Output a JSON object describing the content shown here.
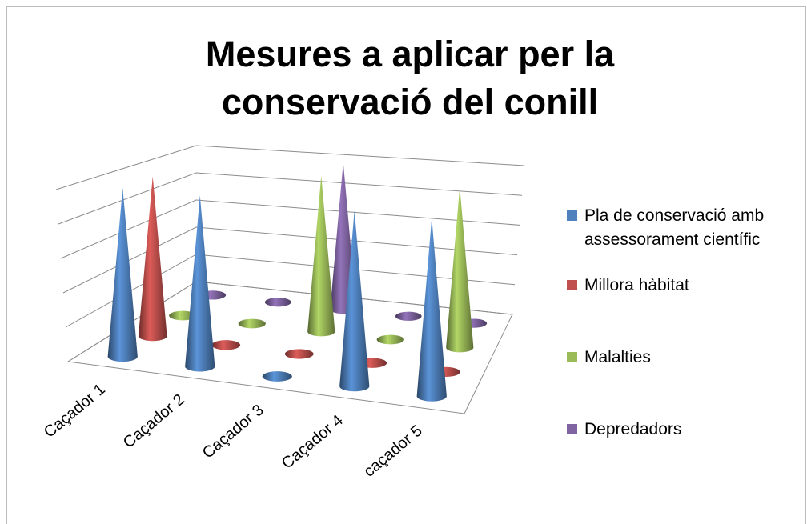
{
  "chart_data": {
    "type": "cone3d",
    "title": "Mesures a aplicar per la conservació del conill",
    "categories": [
      "Caçador 1",
      "Caçador 2",
      "Caçador 3",
      "Caçador 4",
      "caçador 5"
    ],
    "series": [
      {
        "name": "Pla de conservació amb assessorament científic",
        "color": "#4f81bd",
        "values": [
          1,
          1,
          0,
          1,
          1
        ]
      },
      {
        "name": "Millora hàbitat",
        "color": "#c0504d",
        "values": [
          1,
          0,
          0,
          0,
          0
        ]
      },
      {
        "name": "Malalties",
        "color": "#9bbb59",
        "values": [
          0,
          0,
          1,
          0,
          1
        ]
      },
      {
        "name": "Depredadors",
        "color": "#8064a2",
        "values": [
          0,
          0,
          1,
          0,
          0
        ]
      }
    ],
    "ylim": [
      0,
      1
    ],
    "yticks": [
      0,
      0.2,
      0.4,
      0.6,
      0.8,
      1
    ],
    "grid": true,
    "legend": "right"
  }
}
